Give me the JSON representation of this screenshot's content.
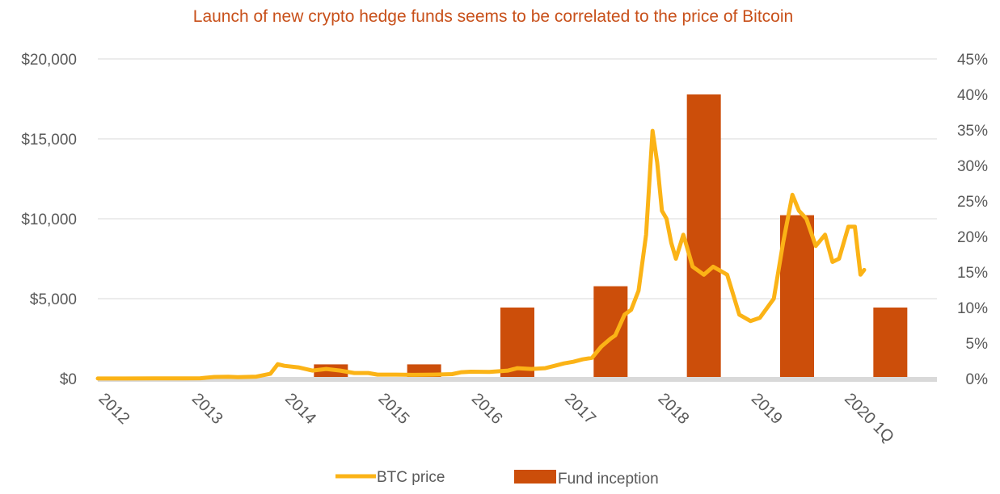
{
  "chart_data": {
    "type": "bar+line",
    "title": "Launch of new crypto  hedge funds seems to be correlated to the price of Bitcoin",
    "categories": [
      "2012",
      "2013",
      "2014",
      "2015",
      "2016",
      "2017",
      "2018",
      "2019",
      "2020 1Q"
    ],
    "left_axis": {
      "ylim": [
        0,
        20000
      ],
      "ticks": [
        0,
        5000,
        10000,
        15000,
        20000
      ],
      "tick_labels": [
        "$0",
        "$5,000",
        "$10,000",
        "$15,000",
        "$20,000"
      ]
    },
    "right_axis": {
      "ylim": [
        0,
        45
      ],
      "ticks": [
        0,
        5,
        10,
        15,
        20,
        25,
        30,
        35,
        40,
        45
      ],
      "tick_labels": [
        "0%",
        "5%",
        "10%",
        "15%",
        "20%",
        "25%",
        "30%",
        "35%",
        "40%",
        "45%"
      ]
    },
    "grid": true,
    "legend_position": "bottom",
    "series": [
      {
        "name": "Fund inception",
        "kind": "bar",
        "axis": "right",
        "color": "#cc4e0a",
        "values": [
          0,
          0,
          2,
          2,
          10,
          13,
          40,
          23,
          10
        ]
      },
      {
        "name": "BTC price",
        "kind": "line",
        "axis": "left",
        "color": "#fbb316",
        "points": [
          [
            2012.0,
            5
          ],
          [
            2012.3,
            5
          ],
          [
            2012.6,
            10
          ],
          [
            2012.9,
            12
          ],
          [
            2013.1,
            20
          ],
          [
            2013.25,
            100
          ],
          [
            2013.4,
            110
          ],
          [
            2013.5,
            90
          ],
          [
            2013.7,
            120
          ],
          [
            2013.85,
            300
          ],
          [
            2013.93,
            900
          ],
          [
            2014.0,
            800
          ],
          [
            2014.15,
            700
          ],
          [
            2014.3,
            500
          ],
          [
            2014.45,
            600
          ],
          [
            2014.6,
            500
          ],
          [
            2014.75,
            350
          ],
          [
            2014.9,
            350
          ],
          [
            2015.0,
            250
          ],
          [
            2015.2,
            250
          ],
          [
            2015.4,
            230
          ],
          [
            2015.6,
            250
          ],
          [
            2015.8,
            280
          ],
          [
            2015.9,
            400
          ],
          [
            2016.0,
            430
          ],
          [
            2016.2,
            420
          ],
          [
            2016.4,
            500
          ],
          [
            2016.5,
            650
          ],
          [
            2016.65,
            600
          ],
          [
            2016.8,
            650
          ],
          [
            2016.9,
            800
          ],
          [
            2017.0,
            950
          ],
          [
            2017.1,
            1050
          ],
          [
            2017.2,
            1200
          ],
          [
            2017.3,
            1300
          ],
          [
            2017.4,
            2000
          ],
          [
            2017.5,
            2500
          ],
          [
            2017.55,
            2700
          ],
          [
            2017.65,
            4000
          ],
          [
            2017.72,
            4300
          ],
          [
            2017.8,
            5500
          ],
          [
            2017.88,
            9000
          ],
          [
            2017.95,
            15500
          ],
          [
            2018.0,
            13500
          ],
          [
            2018.05,
            10500
          ],
          [
            2018.1,
            10000
          ],
          [
            2018.15,
            8500
          ],
          [
            2018.2,
            7500
          ],
          [
            2018.28,
            9000
          ],
          [
            2018.38,
            7000
          ],
          [
            2018.5,
            6500
          ],
          [
            2018.6,
            7000
          ],
          [
            2018.75,
            6500
          ],
          [
            2018.88,
            4000
          ],
          [
            2019.0,
            3600
          ],
          [
            2019.1,
            3800
          ],
          [
            2019.25,
            5000
          ],
          [
            2019.35,
            8500
          ],
          [
            2019.45,
            11500
          ],
          [
            2019.52,
            10500
          ],
          [
            2019.6,
            10000
          ],
          [
            2019.7,
            8300
          ],
          [
            2019.8,
            9000
          ],
          [
            2019.88,
            7300
          ],
          [
            2019.95,
            7500
          ],
          [
            2020.05,
            9500
          ],
          [
            2020.12,
            9500
          ],
          [
            2020.18,
            6500
          ],
          [
            2020.22,
            6800
          ]
        ]
      }
    ]
  }
}
